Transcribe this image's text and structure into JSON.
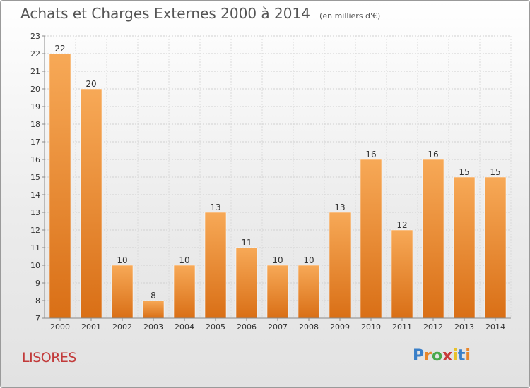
{
  "header": {
    "title": "Achats et Charges Externes 2000 à 2014",
    "subtitle": "(en milliers d'€)"
  },
  "footer": {
    "commune": "LISORES",
    "logo_text": "Proxiti",
    "logo_colors": [
      "#3a7fc8",
      "#e8862a",
      "#4aa84a",
      "#c83a3a",
      "#e8c22a",
      "#3a7fc8",
      "#e8862a"
    ]
  },
  "chart_data": {
    "type": "bar",
    "categories": [
      "2000",
      "2001",
      "2002",
      "2003",
      "2004",
      "2005",
      "2006",
      "2007",
      "2008",
      "2009",
      "2010",
      "2011",
      "2012",
      "2013",
      "2014"
    ],
    "values": [
      22,
      20,
      10,
      8,
      10,
      13,
      11,
      10,
      10,
      13,
      16,
      12,
      16,
      15,
      15
    ],
    "data_labels": [
      "22",
      "20",
      "10",
      "8",
      "10",
      "13",
      "11",
      "10",
      "10",
      "13",
      "16",
      "12",
      "16",
      "15",
      "15"
    ],
    "ylim": [
      7,
      23
    ],
    "yticks": [
      "7",
      "8",
      "9",
      "10",
      "11",
      "12",
      "13",
      "14",
      "15",
      "16",
      "17",
      "18",
      "19",
      "20",
      "21",
      "22",
      "23"
    ],
    "grid": true,
    "bar_color": "#e8862a",
    "bar_color_light": "#f5a553",
    "axis_color": "#888888",
    "label_color": "#333333"
  }
}
